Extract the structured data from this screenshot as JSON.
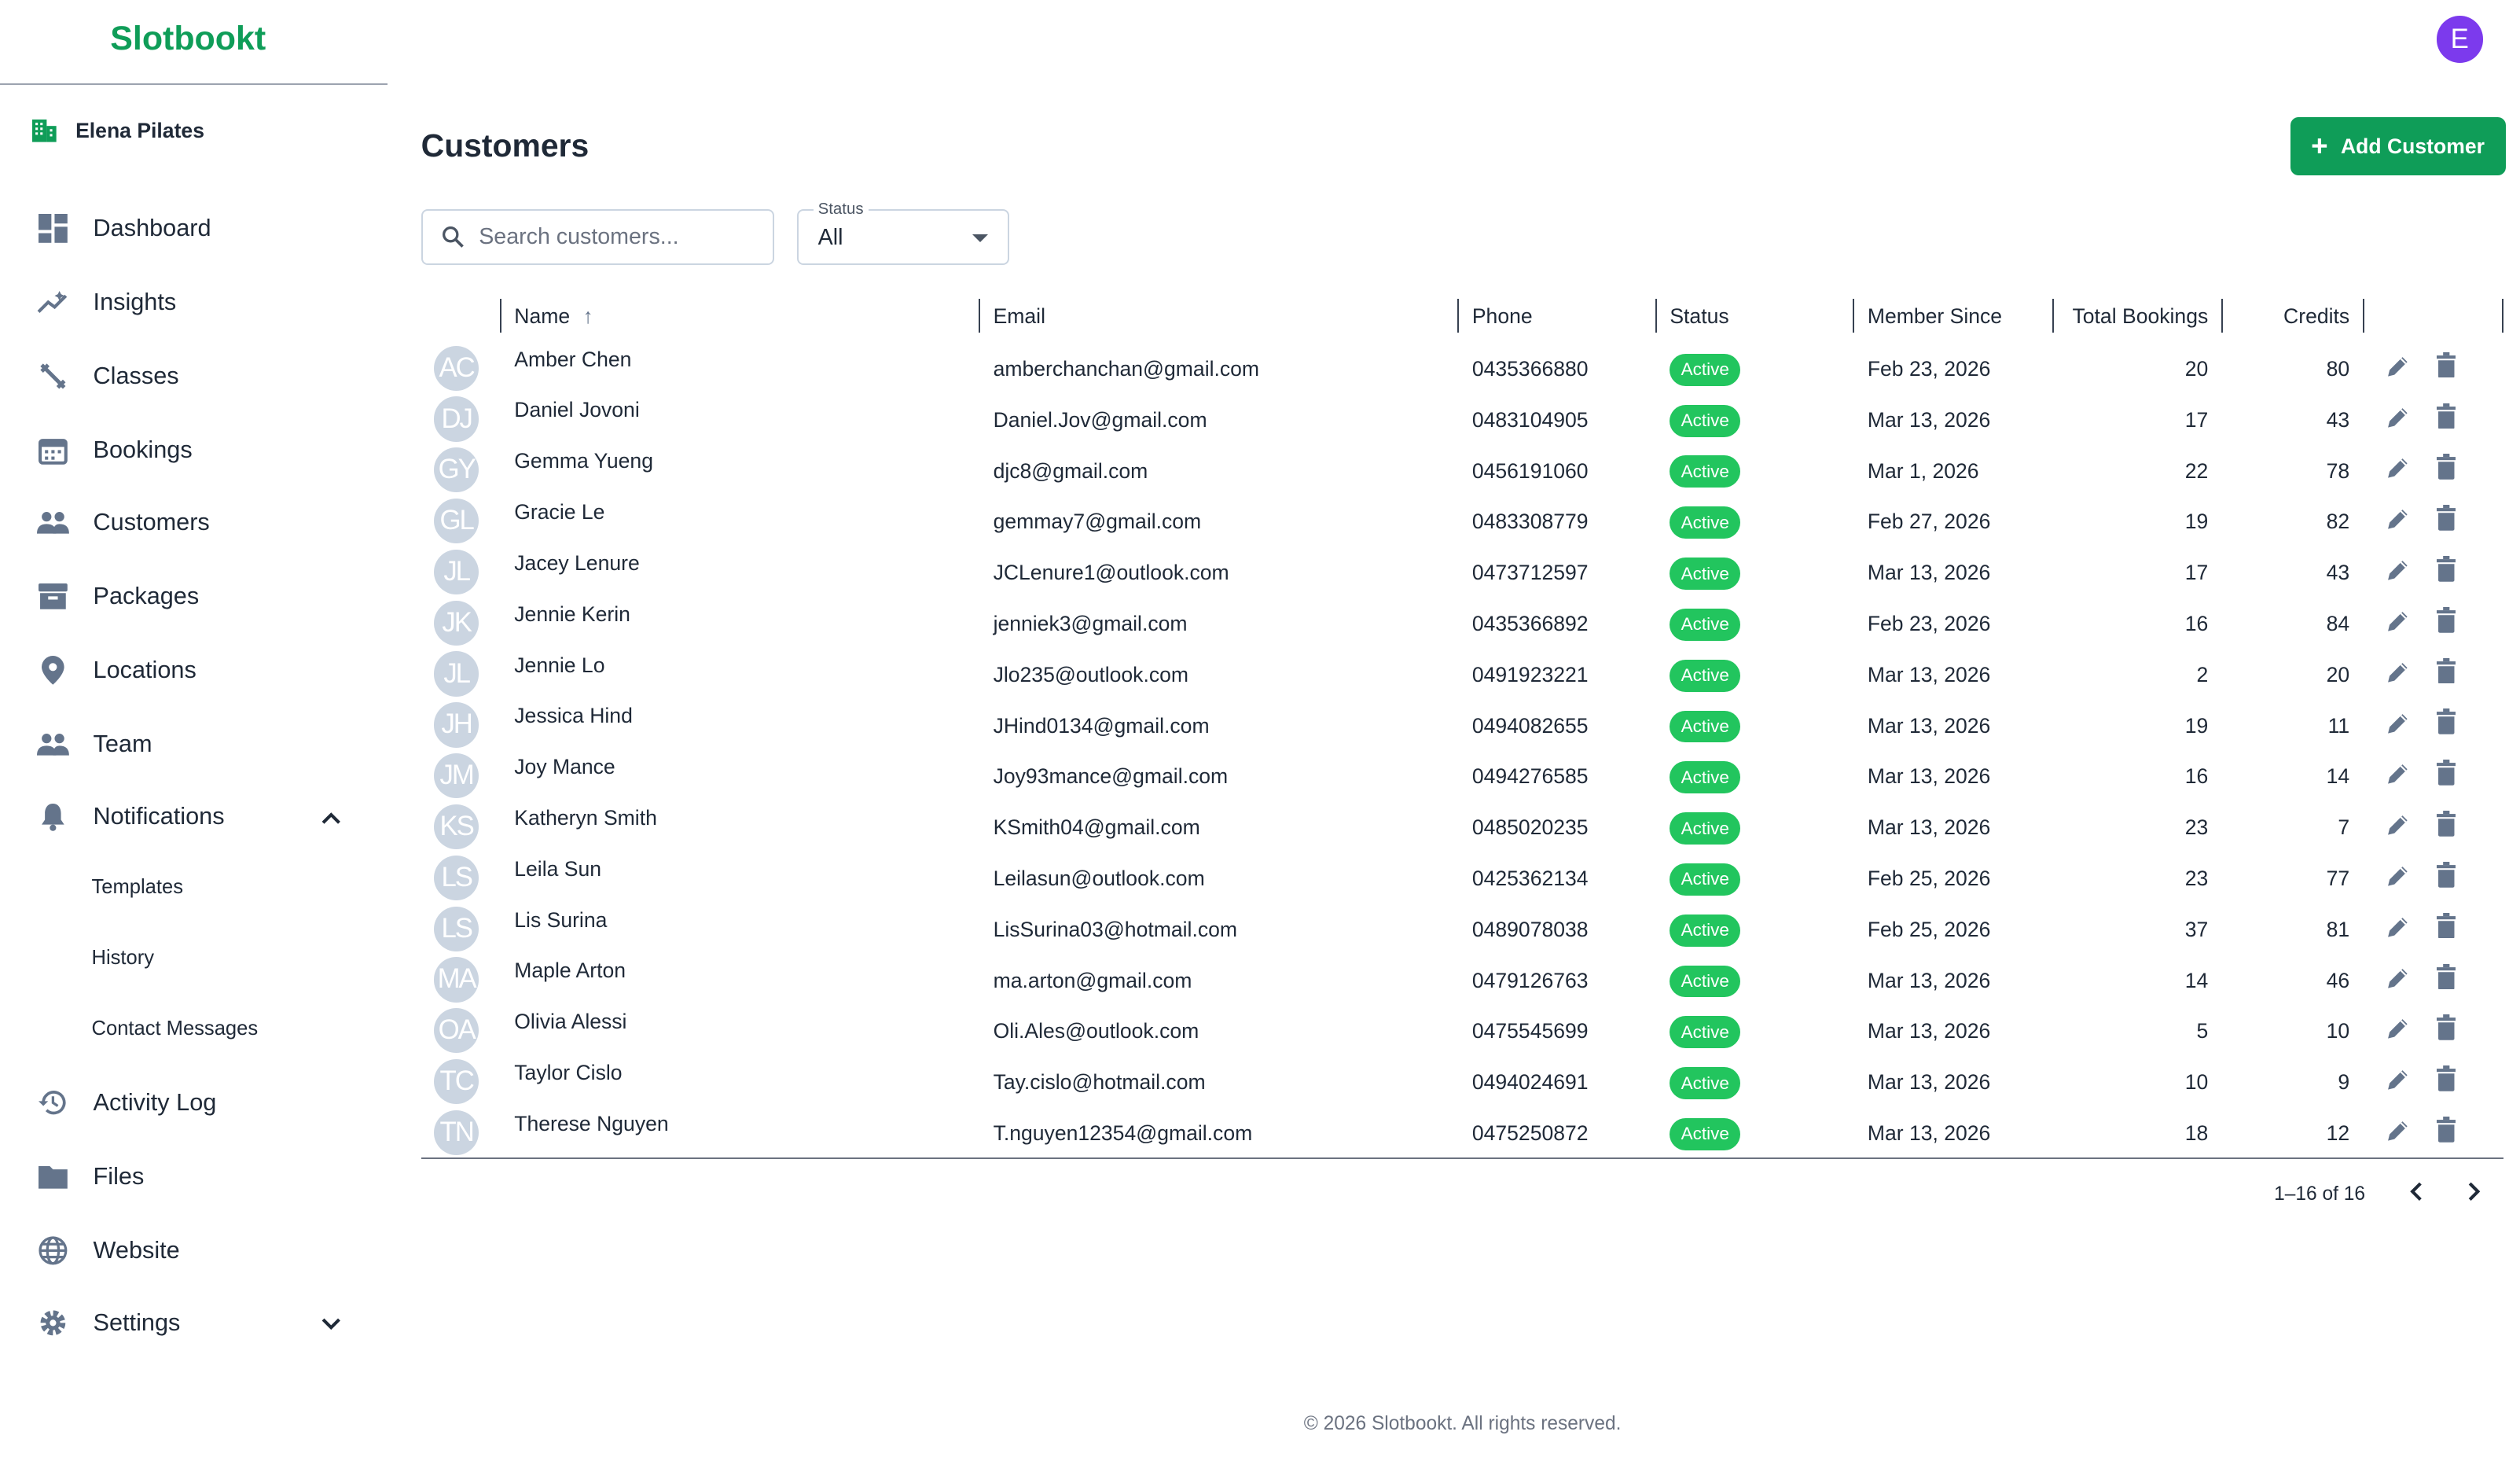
{
  "app": {
    "logo": "Slotbookt",
    "user_initial": "E",
    "accent": "#0f9d58",
    "avatar_color": "#7c3aed"
  },
  "sidebar": {
    "org": "Elena Pilates",
    "items": [
      {
        "label": "Dashboard",
        "icon": "dashboard-icon"
      },
      {
        "label": "Insights",
        "icon": "insights-icon"
      },
      {
        "label": "Classes",
        "icon": "classes-icon"
      },
      {
        "label": "Bookings",
        "icon": "calendar-icon"
      },
      {
        "label": "Customers",
        "icon": "people-icon"
      },
      {
        "label": "Packages",
        "icon": "archive-icon"
      },
      {
        "label": "Locations",
        "icon": "location-pin-icon"
      },
      {
        "label": "Team",
        "icon": "team-icon"
      },
      {
        "label": "Notifications",
        "icon": "bell-icon",
        "expanded": true
      },
      {
        "label": "Activity Log",
        "icon": "history-icon"
      },
      {
        "label": "Files",
        "icon": "folder-icon"
      },
      {
        "label": "Website",
        "icon": "globe-icon"
      },
      {
        "label": "Settings",
        "icon": "gear-icon",
        "expanded": false
      }
    ],
    "notifications_sub": [
      "Templates",
      "History",
      "Contact Messages"
    ]
  },
  "page": {
    "title": "Customers",
    "add_button": "Add Customer",
    "search_placeholder": "Search customers...",
    "status_label": "Status",
    "status_value": "All"
  },
  "table": {
    "columns": [
      "Name",
      "Email",
      "Phone",
      "Status",
      "Member Since",
      "Total Bookings",
      "Credits"
    ],
    "sort": {
      "column": "Name",
      "direction": "asc"
    },
    "rows": [
      {
        "initials": "AC",
        "name": "Amber Chen",
        "email": "amberchanchan@gmail.com",
        "phone": "0435366880",
        "status": "Active",
        "since": "Feb 23, 2026",
        "bookings": "20",
        "credits": "80"
      },
      {
        "initials": "DJ",
        "name": "Daniel Jovoni",
        "email": "Daniel.Jov@gmail.com",
        "phone": "0483104905",
        "status": "Active",
        "since": "Mar 13, 2026",
        "bookings": "17",
        "credits": "43"
      },
      {
        "initials": "GY",
        "name": "Gemma Yueng",
        "email": "djc8@gmail.com",
        "phone": "0456191060",
        "status": "Active",
        "since": "Mar 1, 2026",
        "bookings": "22",
        "credits": "78"
      },
      {
        "initials": "GL",
        "name": "Gracie Le",
        "email": "gemmay7@gmail.com",
        "phone": "0483308779",
        "status": "Active",
        "since": "Feb 27, 2026",
        "bookings": "19",
        "credits": "82"
      },
      {
        "initials": "JL",
        "name": "Jacey Lenure",
        "email": "JCLenure1@outlook.com",
        "phone": "0473712597",
        "status": "Active",
        "since": "Mar 13, 2026",
        "bookings": "17",
        "credits": "43"
      },
      {
        "initials": "JK",
        "name": "Jennie Kerin",
        "email": "jenniek3@gmail.com",
        "phone": "0435366892",
        "status": "Active",
        "since": "Feb 23, 2026",
        "bookings": "16",
        "credits": "84"
      },
      {
        "initials": "JL",
        "name": "Jennie Lo",
        "email": "Jlo235@outlook.com",
        "phone": "0491923221",
        "status": "Active",
        "since": "Mar 13, 2026",
        "bookings": "2",
        "credits": "20"
      },
      {
        "initials": "JH",
        "name": "Jessica Hind",
        "email": "JHind0134@gmail.com",
        "phone": "0494082655",
        "status": "Active",
        "since": "Mar 13, 2026",
        "bookings": "19",
        "credits": "11"
      },
      {
        "initials": "JM",
        "name": "Joy Mance",
        "email": "Joy93mance@gmail.com",
        "phone": "0494276585",
        "status": "Active",
        "since": "Mar 13, 2026",
        "bookings": "16",
        "credits": "14"
      },
      {
        "initials": "KS",
        "name": "Katheryn Smith",
        "email": "KSmith04@gmail.com",
        "phone": "0485020235",
        "status": "Active",
        "since": "Mar 13, 2026",
        "bookings": "23",
        "credits": "7"
      },
      {
        "initials": "LS",
        "name": "Leila Sun",
        "email": "Leilasun@outlook.com",
        "phone": "0425362134",
        "status": "Active",
        "since": "Feb 25, 2026",
        "bookings": "23",
        "credits": "77"
      },
      {
        "initials": "LS",
        "name": "Lis Surina",
        "email": "LisSurina03@hotmail.com",
        "phone": "0489078038",
        "status": "Active",
        "since": "Feb 25, 2026",
        "bookings": "37",
        "credits": "81"
      },
      {
        "initials": "MA",
        "name": "Maple Arton",
        "email": "ma.arton@gmail.com",
        "phone": "0479126763",
        "status": "Active",
        "since": "Mar 13, 2026",
        "bookings": "14",
        "credits": "46"
      },
      {
        "initials": "OA",
        "name": "Olivia Alessi",
        "email": "Oli.Ales@outlook.com",
        "phone": "0475545699",
        "status": "Active",
        "since": "Mar 13, 2026",
        "bookings": "5",
        "credits": "10"
      },
      {
        "initials": "TC",
        "name": "Taylor Cislo",
        "email": "Tay.cislo@hotmail.com",
        "phone": "0494024691",
        "status": "Active",
        "since": "Mar 13, 2026",
        "bookings": "10",
        "credits": "9"
      },
      {
        "initials": "TN",
        "name": "Therese Nguyen",
        "email": "T.nguyen12354@gmail.com",
        "phone": "0475250872",
        "status": "Active",
        "since": "Mar 13, 2026",
        "bookings": "18",
        "credits": "12"
      }
    ],
    "status_color": "#22c55e"
  },
  "pagination": {
    "range": "1–16 of 16"
  },
  "footer": "© 2026 Slotbookt. All rights reserved."
}
